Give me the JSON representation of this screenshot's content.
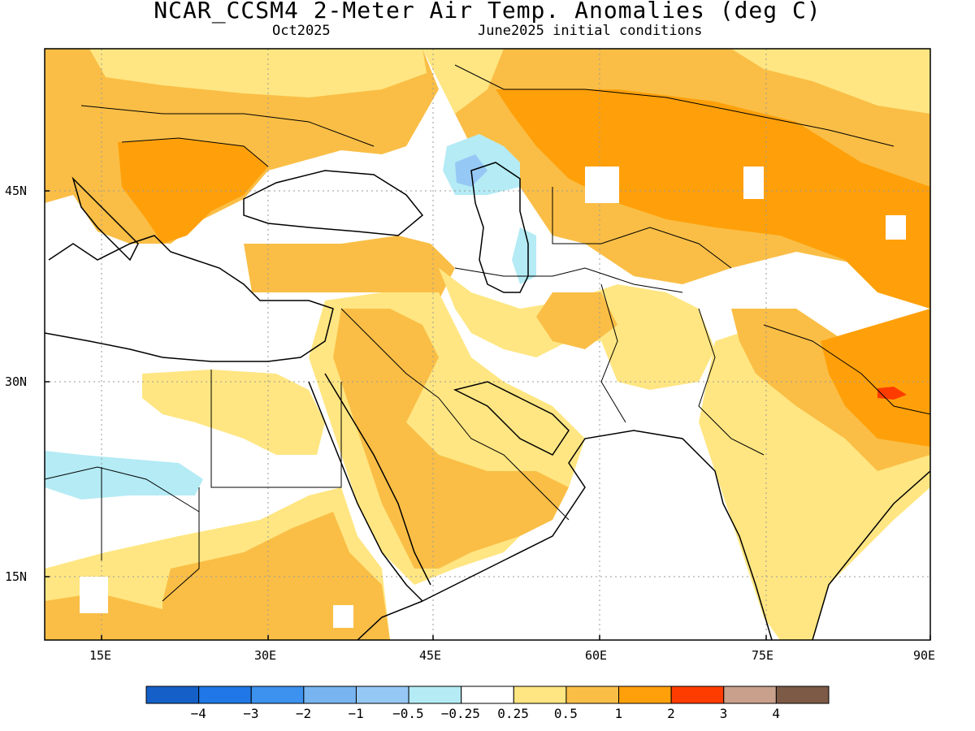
{
  "title": "NCAR_CCSM4 2-Meter Air Temp. Anomalies (deg C)",
  "subtitle_left": "Oct2025",
  "subtitle_right": "June2025 initial conditions",
  "lat_labels": [
    "45N",
    "30N",
    "15N"
  ],
  "lon_labels": [
    "15E",
    "30E",
    "45E",
    "60E",
    "75E",
    "90E"
  ],
  "colorbar": {
    "labels": [
      "-4",
      "-3",
      "-2",
      "-1",
      "-0.5",
      "-0.25",
      "0.25",
      "0.5",
      "1",
      "2",
      "3",
      "4"
    ],
    "colors": [
      "#1560c8",
      "#1f78e6",
      "#3c92ee",
      "#78b4f0",
      "#96c8f5",
      "#b4ebf5",
      "#ffffff",
      "#ffe682",
      "#fabe46",
      "#ffa00a",
      "#ff3c00",
      "#c8a08c",
      "#7d5a46"
    ]
  },
  "anomaly_colors": {
    "light_yellow": "#ffe682",
    "light_orange": "#fabe46",
    "orange": "#ffa00a",
    "red": "#ff3c00",
    "light_cyan": "#b4ebf5",
    "light_blue": "#96c8f5"
  }
}
